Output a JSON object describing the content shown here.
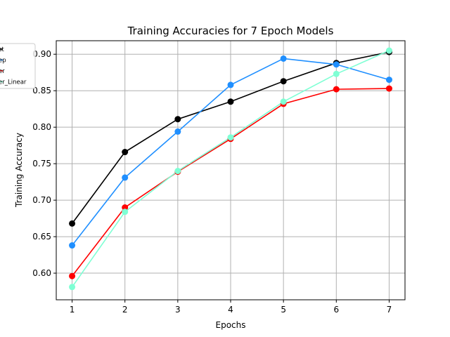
{
  "chart_data": {
    "type": "line",
    "title": "Training Accuracies for 7 Epoch Models",
    "xlabel": "Epochs",
    "ylabel": "Training Accuracy",
    "x": [
      1,
      2,
      3,
      4,
      5,
      6,
      7
    ],
    "xlim": [
      0.7,
      7.3
    ],
    "ylim": [
      0.5635,
      0.9185
    ],
    "yticks": [
      0.6,
      0.65,
      0.7,
      0.75,
      0.8,
      0.85,
      0.9
    ],
    "ytick_labels": [
      "0.60",
      "0.65",
      "0.70",
      "0.75",
      "0.80",
      "0.85",
      "0.90"
    ],
    "xtick_labels": [
      "1",
      "2",
      "3",
      "4",
      "5",
      "6",
      "7"
    ],
    "grid": true,
    "legend_position": "top-left",
    "series": [
      {
        "name": "st",
        "color": "#000000",
        "values": [
          0.668,
          0.766,
          0.811,
          0.835,
          0.863,
          0.888,
          0.903
        ]
      },
      {
        "name": "ep",
        "color": "#1f8fff",
        "values": [
          0.638,
          0.731,
          0.794,
          0.858,
          0.894,
          0.886,
          0.865
        ]
      },
      {
        "name": "er",
        "color": "#ff0000",
        "values": [
          0.596,
          0.69,
          0.739,
          0.784,
          0.832,
          0.852,
          0.853
        ]
      },
      {
        "name": "er_Linear",
        "color": "#7fffd4",
        "values": [
          0.581,
          0.684,
          0.74,
          0.786,
          0.835,
          0.873,
          0.905
        ]
      }
    ]
  }
}
